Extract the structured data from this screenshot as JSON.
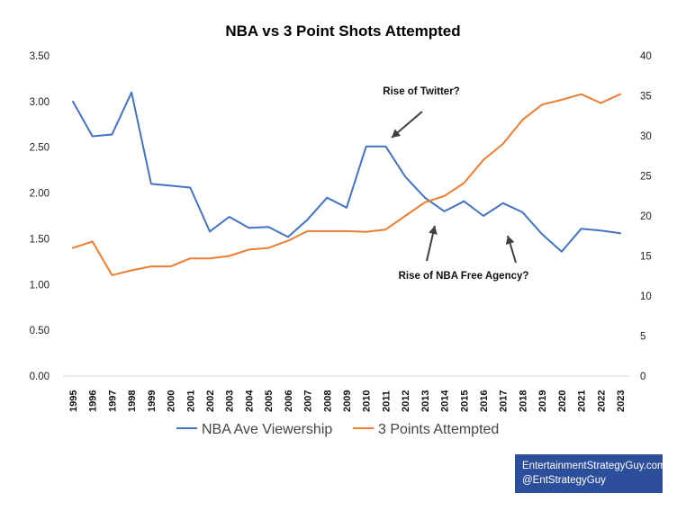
{
  "chart_data": {
    "type": "line",
    "title": "NBA vs 3 Point Shots Attempted",
    "categories": [
      "1995",
      "1996",
      "1997",
      "1998",
      "1999",
      "2000",
      "2001",
      "2002",
      "2003",
      "2004",
      "2005",
      "2006",
      "2007",
      "2008",
      "2009",
      "2010",
      "2011",
      "2012",
      "2013",
      "2014",
      "2015",
      "2016",
      "2017",
      "2018",
      "2019",
      "2020",
      "2021",
      "2022",
      "2023"
    ],
    "series": [
      {
        "name": "NBA Ave Viewership",
        "axis": "left",
        "color": "#4472c4",
        "values": [
          3.0,
          2.62,
          2.64,
          3.1,
          2.1,
          2.08,
          2.06,
          1.58,
          1.74,
          1.62,
          1.63,
          1.52,
          1.71,
          1.95,
          1.84,
          2.51,
          2.51,
          2.18,
          1.95,
          1.8,
          1.91,
          1.75,
          1.89,
          1.79,
          1.55,
          1.36,
          1.61,
          1.59,
          1.56
        ]
      },
      {
        "name": "3 Points Attempted",
        "axis": "right",
        "color": "#ed7d31",
        "values": [
          16.0,
          16.8,
          12.6,
          13.2,
          13.7,
          13.7,
          14.7,
          14.7,
          15.0,
          15.8,
          16.0,
          16.9,
          18.1,
          18.1,
          18.1,
          18.0,
          18.3,
          20.0,
          21.7,
          22.5,
          24.1,
          27.0,
          29.0,
          32.0,
          33.9,
          34.5,
          35.2,
          34.1,
          35.2
        ]
      }
    ],
    "y_left": {
      "min": 0,
      "max": 3.5,
      "step": 0.5,
      "tick_labels": [
        "0.00",
        "0.50",
        "1.00",
        "1.50",
        "2.00",
        "2.50",
        "3.00",
        "3.50"
      ]
    },
    "y_right": {
      "min": 0,
      "max": 40,
      "step": 5,
      "tick_labels": [
        "0",
        "5",
        "10",
        "15",
        "20",
        "25",
        "30",
        "35",
        "40"
      ]
    },
    "grid": false,
    "legend_position": "bottom",
    "annotations": [
      {
        "text": "Rise of Twitter?",
        "target_category": "2011"
      },
      {
        "text": "Rise of NBA Free Agency?",
        "target_category": "2013"
      }
    ]
  },
  "credit": {
    "line1": "EntertainmentStrategyGuy.com",
    "line2": "@EntStrategyGuy"
  }
}
